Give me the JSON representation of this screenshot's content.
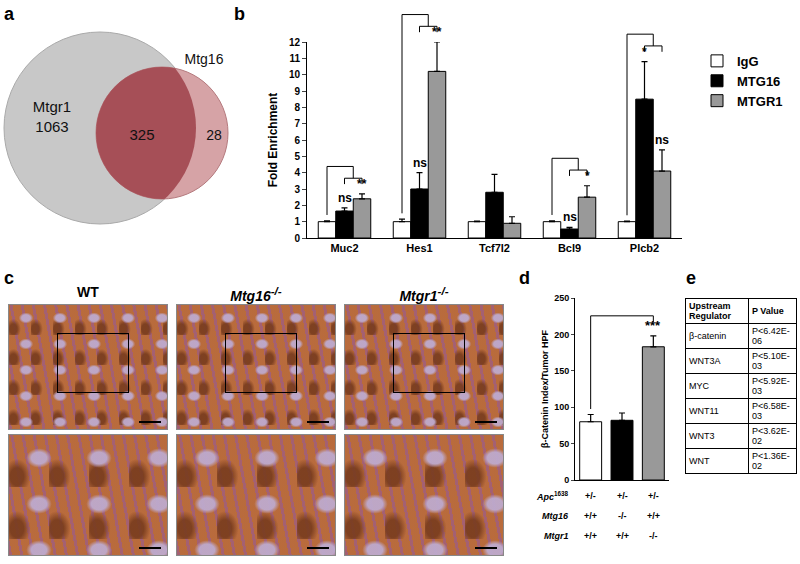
{
  "venn": {
    "label": "a",
    "sets": [
      {
        "name": "Mtgr1",
        "count": 1063,
        "color": "#c8c8c8"
      },
      {
        "name": "Mtg16",
        "count": 28,
        "color": "#d6a3a6"
      }
    ],
    "overlap": {
      "count": 325,
      "color": "#a64f57"
    }
  },
  "chart_data": [
    {
      "label": "b",
      "type": "bar",
      "categories": [
        "Muc2",
        "Hes1",
        "Tcf7l2",
        "Bcl9",
        "Plcb2"
      ],
      "ylabel": "Fold Enrichment",
      "ylim": [
        0,
        12
      ],
      "yticks": [
        0,
        1,
        2,
        3,
        4,
        5,
        6,
        7,
        8,
        9,
        10,
        11,
        12
      ],
      "grid": false,
      "legend": "right",
      "series": [
        {
          "name": "IgG",
          "color": "#ffffff",
          "values": [
            1,
            1,
            1,
            1,
            1
          ],
          "errors": [
            0.05,
            0.15,
            0.03,
            0.05,
            0.03
          ]
        },
        {
          "name": "MTG16",
          "color": "#000000",
          "values": [
            1.65,
            3.0,
            2.8,
            0.55,
            8.5
          ],
          "errors": [
            0.2,
            1.0,
            1.1,
            0.1,
            2.3
          ]
        },
        {
          "name": "MTGR1",
          "color": "#999999",
          "values": [
            2.4,
            10.2,
            0.9,
            2.5,
            4.1
          ],
          "errors": [
            0.3,
            1.8,
            0.4,
            0.7,
            1.3
          ]
        }
      ],
      "comparisons": [
        {
          "category": "Muc2",
          "labels": {
            "MTG16": "ns",
            "MTGR1": "**"
          }
        },
        {
          "category": "Hes1",
          "labels": {
            "MTG16": "ns",
            "MTGR1": "**"
          }
        },
        {
          "category": "Bcl9",
          "labels": {
            "MTG16": "ns",
            "MTGR1": "*"
          }
        },
        {
          "category": "Plcb2",
          "labels": {
            "MTG16": "*",
            "MTGR1": "ns"
          }
        }
      ]
    },
    {
      "label": "d",
      "type": "bar",
      "categories": [
        null,
        null,
        null
      ],
      "ylabel": "β-Catenin Index/Tumor HPF",
      "ylim": [
        0,
        250
      ],
      "yticks": [
        0,
        50,
        100,
        150,
        200,
        250
      ],
      "grid": false,
      "tick_labels": "y",
      "values": [
        80,
        82,
        183
      ],
      "errors": [
        10,
        10,
        15
      ],
      "colors": [
        "#ffffff",
        "#000000",
        "#999999"
      ],
      "genotypes": [
        {
          "gene": "Apc",
          "superscript": "1638",
          "values": [
            "+/-",
            "+/-",
            "+/-"
          ]
        },
        {
          "gene": "Mtg16",
          "values": [
            "+/+",
            "-/-",
            "+/+"
          ]
        },
        {
          "gene": "Mtgr1",
          "values": [
            "+/+",
            "+/+",
            "-/-"
          ]
        }
      ],
      "comparisons": [
        {
          "from": 0,
          "to": 2,
          "text": "***"
        }
      ]
    }
  ],
  "micrographs": {
    "label": "c",
    "panels": [
      {
        "title": "WT"
      },
      {
        "title": "Mtg16",
        "superscript": "-/-"
      },
      {
        "title": "Mtgr1",
        "superscript": "-/-"
      }
    ]
  },
  "table": {
    "label": "e",
    "header": [
      "Upstream Regulator",
      "P Value"
    ],
    "rows": [
      [
        "β-catenin",
        "P<6.42E-06"
      ],
      [
        "WNT3A",
        "P<5.10E-03"
      ],
      [
        "MYC",
        "P<5.92E-03"
      ],
      [
        "WNT11",
        "P<6.58E-03"
      ],
      [
        "WNT3",
        "P<3.62E-02"
      ],
      [
        "WNT",
        "P<1.36E-02"
      ]
    ]
  }
}
